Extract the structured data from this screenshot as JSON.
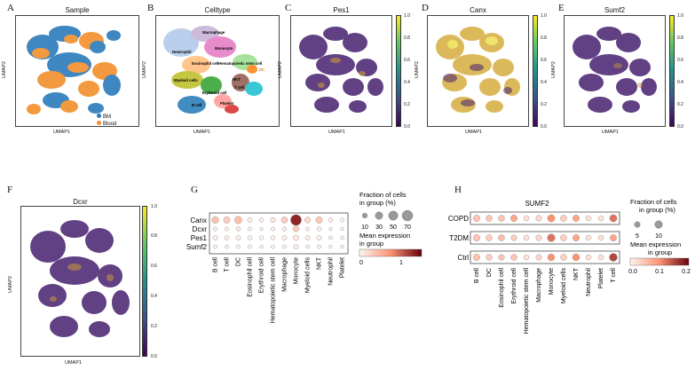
{
  "panel_letters": [
    "A",
    "B",
    "C",
    "D",
    "E",
    "F",
    "G",
    "H"
  ],
  "umap_axes": {
    "x": "UMAP1",
    "y": "UMAP2"
  },
  "panelA": {
    "title": "Sample",
    "legend": [
      {
        "label": "BM",
        "color": "#2b7bba"
      },
      {
        "label": "Blood",
        "color": "#f28e2b"
      }
    ]
  },
  "panelB": {
    "title": "Celltype",
    "labels": [
      "Macrophage",
      "Monocyte",
      "Neutrophil",
      "Eosinophil cell",
      "Hematopoietic stem cell",
      "DC",
      "NKT",
      "T cell",
      "Myeloid cells",
      "Erythroid cell",
      "B cell",
      "Platelet"
    ]
  },
  "panelC": {
    "title": "Pes1",
    "ticks": [
      "1.0",
      "0.8",
      "0.6",
      "0.4",
      "0.2",
      "0.0"
    ]
  },
  "panelD": {
    "title": "Canx",
    "ticks": [
      "1.0",
      "0.8",
      "0.6",
      "0.4",
      "0.2",
      "0.0"
    ]
  },
  "panelE": {
    "title": "Sumf2",
    "ticks": [
      "1.0",
      "0.8",
      "0.6",
      "0.4",
      "0.2",
      "0.0"
    ]
  },
  "panelF": {
    "title": "Dcxr",
    "ticks": [
      "1.0",
      "0.8",
      "0.6",
      "0.4",
      "0.2",
      "0.0"
    ]
  },
  "viridis": [
    "#fde725",
    "#5ec962",
    "#21918c",
    "#3b528b",
    "#440154"
  ],
  "panelG": {
    "genes": [
      "Canx",
      "Dcxr",
      "Pes1",
      "Sumf2"
    ],
    "celltypes": [
      "B cell",
      "T cell",
      "DC",
      "Eosinophil cell",
      "Erythroid cell",
      "Hematopoietic stem cell",
      "Macrophage",
      "Monocyte",
      "Myeloid cells",
      "NKT",
      "Neutrophil",
      "Platelet"
    ],
    "size_legend_title": "Fraction of cells in group (%)",
    "size_values": [
      "10",
      "30",
      "50",
      "70"
    ],
    "color_legend_title": "Mean expression in group",
    "color_ticks": [
      "0",
      "1"
    ]
  },
  "panelH": {
    "title": "SUMF2",
    "conditions": [
      "COPD",
      "T2DM",
      "Ctrl"
    ],
    "celltypes": [
      "B cell",
      "DC",
      "Eosinophil cell",
      "Erythroid cell",
      "Hematopoietic stem cell",
      "Macrophage",
      "Monocyte",
      "Myeloid cells",
      "NKT",
      "Neutrophil",
      "Platelet",
      "T cell"
    ],
    "size_legend_title": "Fraction of cells in group (%)",
    "size_values": [
      "5",
      "10"
    ],
    "color_legend_title": "Mean expression in group",
    "color_ticks": [
      "0.0",
      "0.1",
      "0.2"
    ]
  },
  "chart_data": [
    {
      "type": "scatter",
      "title": "",
      "xlabel": "",
      "ylabel": "",
      "series": [
        {
          "name": "Canx",
          "size_pct": [
            22,
            20,
            28,
            8,
            6,
            10,
            18,
            72,
            15,
            20,
            6,
            4
          ],
          "mean_expr": [
            0.4,
            0.3,
            0.4,
            0.05,
            0.05,
            0.1,
            0.3,
            1.3,
            0.2,
            0.35,
            0.05,
            0.02
          ]
        },
        {
          "name": "Dcxr",
          "size_pct": [
            5,
            4,
            6,
            4,
            2,
            3,
            5,
            15,
            4,
            6,
            2,
            2
          ],
          "mean_expr": [
            0.05,
            0.03,
            0.1,
            0.02,
            0.02,
            0.02,
            0.05,
            0.3,
            0.03,
            0.05,
            0.02,
            0.01
          ]
        },
        {
          "name": "Pes1",
          "size_pct": [
            8,
            6,
            8,
            6,
            5,
            6,
            7,
            12,
            6,
            8,
            3,
            3
          ],
          "mean_expr": [
            0.05,
            0.05,
            0.05,
            0.03,
            0.03,
            0.03,
            0.05,
            0.1,
            0.03,
            0.05,
            0.02,
            0.02
          ]
        },
        {
          "name": "Sumf2",
          "size_pct": [
            4,
            3,
            4,
            4,
            2,
            4,
            4,
            8,
            3,
            4,
            2,
            2
          ],
          "mean_expr": [
            0.02,
            0.02,
            0.02,
            0.02,
            0.01,
            0.02,
            0.02,
            0.05,
            0.02,
            0.02,
            0.01,
            0.01
          ]
        }
      ]
    },
    {
      "type": "scatter",
      "title": "SUMF2",
      "xlabel": "",
      "ylabel": "",
      "series": [
        {
          "name": "COPD",
          "size_pct": [
            7,
            6,
            6,
            7,
            4,
            5,
            9,
            6,
            7,
            4,
            4,
            9
          ],
          "mean_expr": [
            0.05,
            0.05,
            0.05,
            0.08,
            0.02,
            0.03,
            0.1,
            0.04,
            0.08,
            0.02,
            0.02,
            0.12
          ]
        },
        {
          "name": "T2DM",
          "size_pct": [
            7,
            6,
            6,
            5,
            4,
            5,
            10,
            6,
            7,
            4,
            4,
            7
          ],
          "mean_expr": [
            0.05,
            0.04,
            0.06,
            0.04,
            0.02,
            0.03,
            0.12,
            0.04,
            0.08,
            0.02,
            0.02,
            0.08
          ]
        },
        {
          "name": "Ctrl",
          "size_pct": [
            7,
            6,
            5,
            6,
            4,
            5,
            8,
            6,
            8,
            4,
            4,
            11
          ],
          "mean_expr": [
            0.05,
            0.04,
            0.05,
            0.05,
            0.02,
            0.03,
            0.1,
            0.04,
            0.1,
            0.02,
            0.02,
            0.15
          ]
        }
      ]
    }
  ]
}
